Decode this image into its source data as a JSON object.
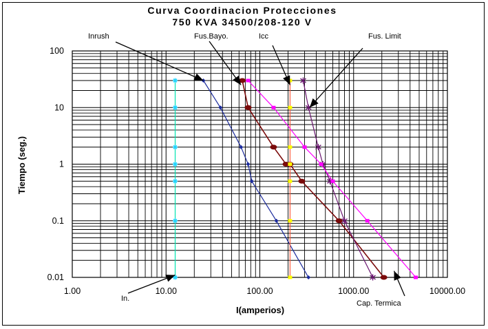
{
  "chart_data": {
    "type": "line",
    "title": [
      "Curva Coordinacion Protecciones",
      "750 KVA 34500/208-120 V"
    ],
    "xlabel": "I(amperios)",
    "ylabel": "Tiempo (seg.)",
    "x_scale": "log",
    "y_scale": "log",
    "xlim": [
      1,
      10000
    ],
    "ylim": [
      0.01,
      100
    ],
    "x_tick_values": [
      1,
      10,
      100,
      1000,
      10000
    ],
    "x_tick_labels": [
      "1.00",
      "10.00",
      "100.00",
      "1000.00",
      "10000.00"
    ],
    "y_tick_values": [
      100,
      10,
      1,
      0.1,
      0.01
    ],
    "y_tick_labels": [
      "100",
      "10",
      "1",
      "0.1",
      "0.01"
    ],
    "grid": true,
    "plot_background": "#ffffff",
    "series": [
      {
        "name": "In.",
        "color": "#00e5b0",
        "marker": "star",
        "marker_color": "#22d4ff",
        "x": [
          12.5,
          12.5,
          12.5,
          12.5,
          12.5,
          12.5,
          12.5
        ],
        "y": [
          30,
          10,
          2,
          1,
          0.5,
          0.1,
          0.01
        ]
      },
      {
        "name": "Inrush",
        "color": "#1a2a9c",
        "marker": "diamond",
        "x": [
          25,
          38,
          63,
          75,
          82,
          150,
          330
        ],
        "y": [
          30,
          10,
          2,
          1,
          0.5,
          0.1,
          0.01
        ]
      },
      {
        "name": "Fus.Bayo.",
        "color": "#7a0a0a",
        "marker": "dot",
        "x": [
          65,
          75,
          140,
          190,
          210,
          280,
          700,
          2100
        ],
        "y": [
          30,
          10,
          2,
          1,
          1,
          0.5,
          0.1,
          0.01
        ]
      },
      {
        "name": "Icc",
        "color": "#ff5a3c",
        "marker": "square",
        "marker_color": "#ffff00",
        "x": [
          210,
          210,
          210,
          210,
          210,
          210,
          210
        ],
        "y": [
          30,
          10,
          2,
          1,
          0.5,
          0.1,
          0.01
        ]
      },
      {
        "name": "Fus. Limit",
        "color": "#6a1570",
        "marker": "asterisk",
        "x": [
          290,
          330,
          420,
          470,
          560,
          800,
          1600
        ],
        "y": [
          30,
          10,
          2,
          1,
          0.5,
          0.1,
          0.01
        ]
      },
      {
        "name": "Cap. Termica",
        "color": "#ff00ff",
        "marker": "square",
        "x": [
          75,
          140,
          300,
          450,
          600,
          1400,
          4600
        ],
        "y": [
          30,
          10,
          2,
          1,
          0.5,
          0.1,
          0.01
        ]
      }
    ],
    "annotations": [
      {
        "text": "Inrush",
        "target": [
          25,
          30
        ]
      },
      {
        "text": "Fus.Bayo.",
        "target": [
          63,
          25
        ]
      },
      {
        "text": "Icc",
        "target": [
          210,
          25
        ]
      },
      {
        "text": "Fus. Limit",
        "target": [
          340,
          10
        ]
      },
      {
        "text": "In.",
        "target": [
          12.5,
          0.011
        ]
      },
      {
        "text": "Cap. Termica",
        "target": [
          2700,
          0.013
        ]
      }
    ]
  }
}
